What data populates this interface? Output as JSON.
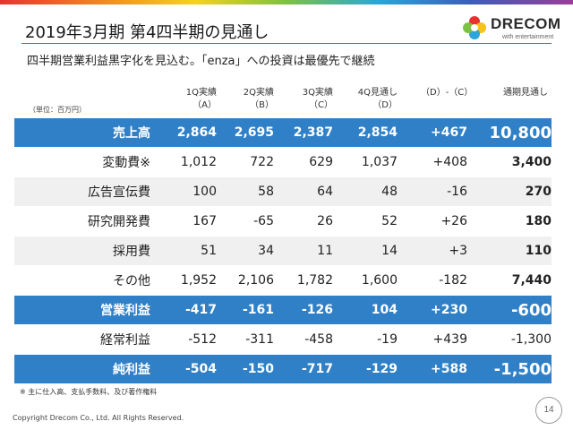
{
  "header": {
    "title": "2019年3月期 第4四半期の見通し",
    "subtitle": "四半期営業利益黒字化を見込む。「enza」への投資は最優先で継続",
    "logo_text": "DRECOM",
    "logo_tagline": "with entertainment"
  },
  "table": {
    "unit_label": "（単位：百万円）",
    "columns": [
      {
        "line1": "1Q実績",
        "line2": "（A）"
      },
      {
        "line1": "2Q実績",
        "line2": "（B）"
      },
      {
        "line1": "3Q実績",
        "line2": "（C）"
      },
      {
        "line1": "4Q見通し",
        "line2": "（D）"
      },
      {
        "line1": "（D）-（C）",
        "line2": ""
      },
      {
        "line1": "通期見通し",
        "line2": ""
      }
    ],
    "rows": [
      {
        "label": "売上高",
        "values": [
          "2,864",
          "2,695",
          "2,387",
          "2,854",
          "+467",
          "10,800"
        ]
      },
      {
        "label": "変動費※",
        "values": [
          "1,012",
          "722",
          "629",
          "1,037",
          "+408",
          "3,400"
        ]
      },
      {
        "label": "広告宣伝費",
        "values": [
          "100",
          "58",
          "64",
          "48",
          "-16",
          "270"
        ]
      },
      {
        "label": "研究開発費",
        "values": [
          "167",
          "-65",
          "26",
          "52",
          "+26",
          "180"
        ]
      },
      {
        "label": "採用費",
        "values": [
          "51",
          "34",
          "11",
          "14",
          "+3",
          "110"
        ]
      },
      {
        "label": "その他",
        "values": [
          "1,952",
          "2,106",
          "1,782",
          "1,600",
          "-182",
          "7,440"
        ]
      },
      {
        "label": "営業利益",
        "values": [
          "-417",
          "-161",
          "-126",
          "104",
          "+230",
          "-600"
        ]
      },
      {
        "label": "経常利益",
        "values": [
          "-512",
          "-311",
          "-458",
          "-19",
          "+439",
          "-1,300"
        ]
      },
      {
        "label": "純利益",
        "values": [
          "-504",
          "-150",
          "-717",
          "-129",
          "+588",
          "-1,500"
        ]
      }
    ]
  },
  "footnote": "※ 主に仕入高、支払手数料、及び著作権料",
  "copyright": "Copyright Drecom Co., Ltd. All Rights Reserved.",
  "page_number": "14",
  "colors": {
    "accent_blue": "#2f80c7",
    "row_shade": "#f0f0f0"
  }
}
